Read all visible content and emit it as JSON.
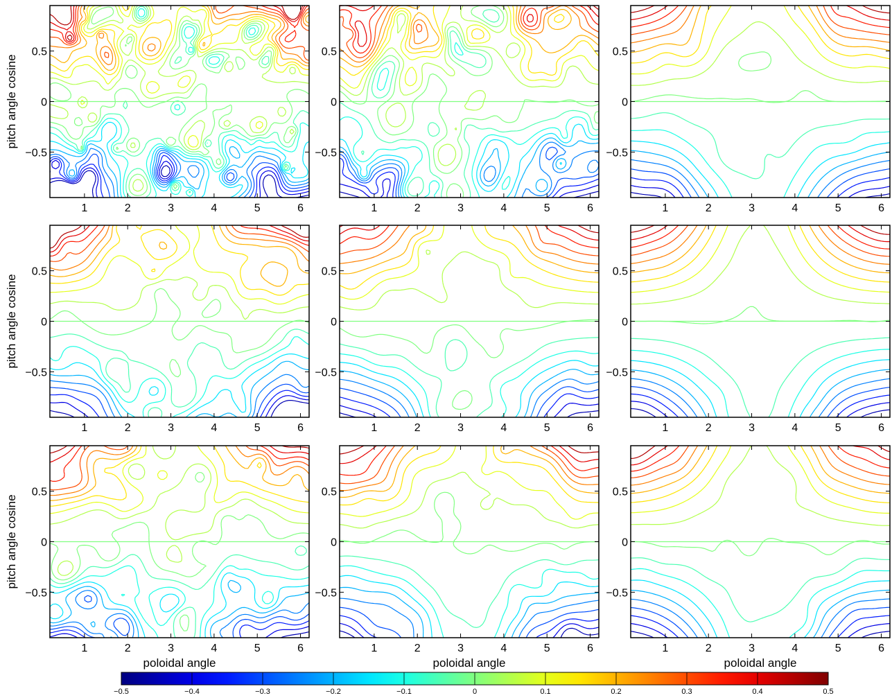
{
  "chart_data": {
    "type": "contour",
    "layout": {
      "rows": 3,
      "cols": 3
    },
    "xlabel": "poloidal angle",
    "ylabel": "pitch angle cosine",
    "xlim": [
      0.2,
      6.2
    ],
    "ylim": [
      -0.95,
      0.95
    ],
    "xticks": [
      1,
      2,
      3,
      4,
      5,
      6
    ],
    "xtick_labels": [
      "1",
      "2",
      "3",
      "4",
      "5",
      "6"
    ],
    "yticks": [
      0.5,
      0,
      -0.5
    ],
    "ytick_labels": [
      "0.5",
      "0",
      "−0.5"
    ],
    "contour_levels": [
      -0.5,
      -0.4,
      -0.3,
      -0.2,
      -0.1,
      0,
      0.1,
      0.2,
      0.3,
      0.4,
      0.5
    ],
    "panels": [
      {
        "row": 0,
        "col": 0,
        "noise": 1.0,
        "smooth": 0.0
      },
      {
        "row": 0,
        "col": 1,
        "noise": 0.75,
        "smooth": 0.2
      },
      {
        "row": 0,
        "col": 2,
        "noise": 0.15,
        "smooth": 0.7
      },
      {
        "row": 1,
        "col": 0,
        "noise": 0.45,
        "smooth": 0.5
      },
      {
        "row": 1,
        "col": 1,
        "noise": 0.25,
        "smooth": 0.75
      },
      {
        "row": 1,
        "col": 2,
        "noise": 0.05,
        "smooth": 0.95
      },
      {
        "row": 2,
        "col": 0,
        "noise": 0.5,
        "smooth": 0.45
      },
      {
        "row": 2,
        "col": 1,
        "noise": 0.3,
        "smooth": 0.65
      },
      {
        "row": 2,
        "col": 2,
        "noise": 0.12,
        "smooth": 0.85
      }
    ],
    "colorbar": {
      "min": -0.5,
      "max": 0.5,
      "ticks": [
        -0.5,
        -0.4,
        -0.3,
        -0.2,
        -0.1,
        0,
        0.1,
        0.2,
        0.3,
        0.4,
        0.5
      ],
      "tick_labels": [
        "−0.5",
        "−0.4",
        "−0.3",
        "−0.2",
        "−0.1",
        "0",
        "0.1",
        "0.2",
        "0.3",
        "0.4",
        "0.5"
      ],
      "colormap": "jet"
    }
  }
}
